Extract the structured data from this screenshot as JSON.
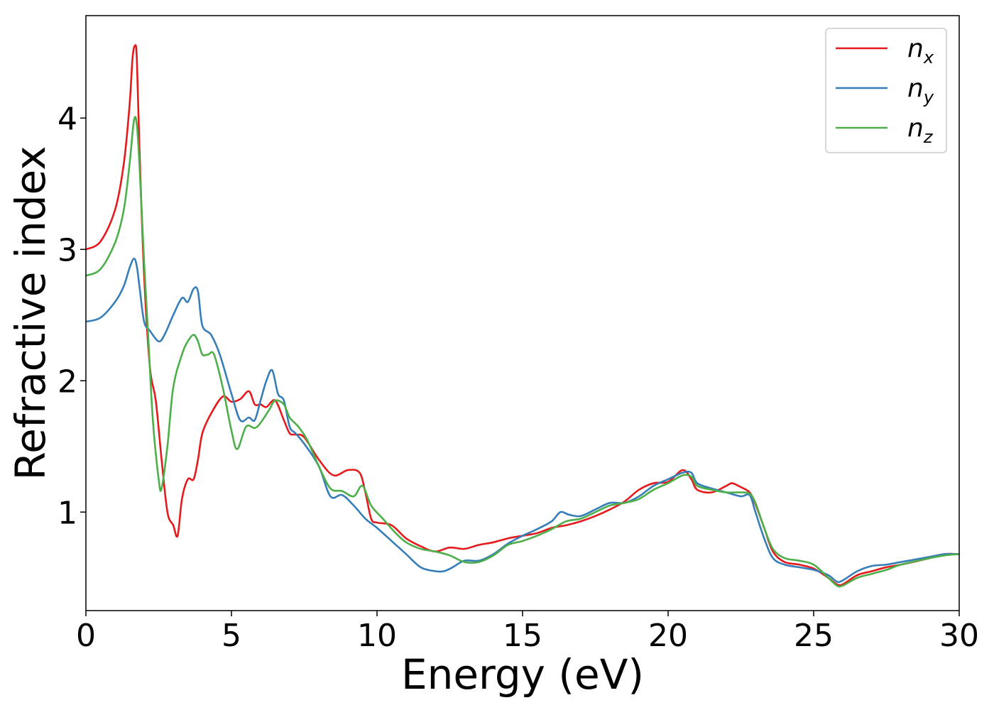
{
  "chart_data": {
    "type": "line",
    "xlabel": "Energy (eV)",
    "ylabel": "Refractive index",
    "xlim": [
      0,
      30
    ],
    "ylim": [
      0.25,
      4.78
    ],
    "xticks": [
      0,
      5,
      10,
      15,
      20,
      25,
      30
    ],
    "xtick_labels": [
      "0",
      "5",
      "10",
      "15",
      "20",
      "25",
      "30"
    ],
    "yticks": [
      1,
      2,
      3,
      4
    ],
    "ytick_labels": [
      "1",
      "2",
      "3",
      "4"
    ],
    "grid": false,
    "legend_position": "top-right",
    "series": [
      {
        "name": "n_x",
        "name_base": "n",
        "name_sub": "x",
        "color": "#e41a1c",
        "x": [
          0,
          0.5,
          1,
          1.3,
          1.5,
          1.6,
          1.68,
          1.75,
          1.85,
          2.0,
          2.2,
          2.4,
          2.6,
          2.8,
          3.0,
          3.15,
          3.3,
          3.5,
          3.7,
          3.85,
          4.0,
          4.3,
          4.7,
          5.0,
          5.3,
          5.6,
          5.8,
          6.0,
          6.2,
          6.5,
          6.8,
          7.0,
          7.2,
          7.5,
          8.0,
          8.5,
          9.0,
          9.4,
          9.6,
          9.8,
          10.0,
          10.5,
          11.0,
          11.5,
          12.0,
          12.5,
          13.0,
          13.5,
          14.0,
          14.5,
          15.0,
          15.5,
          16.0,
          16.5,
          17.0,
          17.5,
          18.0,
          18.5,
          19.0,
          19.5,
          20.0,
          20.5,
          20.8,
          21.0,
          21.5,
          22.0,
          22.2,
          22.5,
          22.8,
          23.0,
          23.3,
          23.6,
          24.0,
          24.5,
          25.0,
          25.5,
          25.8,
          26.0,
          26.5,
          27.0,
          27.5,
          28.0,
          29.0,
          29.5,
          30.0
        ],
        "y": [
          3.0,
          3.06,
          3.3,
          3.65,
          4.1,
          4.45,
          4.55,
          4.45,
          3.7,
          2.8,
          2.1,
          1.85,
          1.4,
          1.0,
          0.9,
          0.82,
          1.1,
          1.25,
          1.25,
          1.4,
          1.6,
          1.75,
          1.88,
          1.84,
          1.86,
          1.92,
          1.82,
          1.82,
          1.8,
          1.85,
          1.7,
          1.6,
          1.59,
          1.57,
          1.4,
          1.28,
          1.32,
          1.3,
          1.15,
          0.95,
          0.92,
          0.9,
          0.8,
          0.74,
          0.7,
          0.73,
          0.72,
          0.75,
          0.77,
          0.8,
          0.82,
          0.84,
          0.88,
          0.9,
          0.93,
          0.97,
          1.02,
          1.08,
          1.17,
          1.22,
          1.23,
          1.32,
          1.25,
          1.17,
          1.15,
          1.2,
          1.22,
          1.19,
          1.15,
          1.06,
          0.88,
          0.7,
          0.62,
          0.6,
          0.57,
          0.5,
          0.45,
          0.45,
          0.52,
          0.55,
          0.58,
          0.6,
          0.65,
          0.68,
          0.68
        ]
      },
      {
        "name": "n_y",
        "name_base": "n",
        "name_sub": "y",
        "color": "#377eb8",
        "x": [
          0,
          0.5,
          1,
          1.3,
          1.5,
          1.65,
          1.75,
          1.85,
          2.0,
          2.2,
          2.5,
          2.7,
          3.0,
          3.3,
          3.5,
          3.7,
          3.85,
          4.0,
          4.3,
          4.6,
          5.0,
          5.3,
          5.6,
          5.8,
          6.0,
          6.2,
          6.4,
          6.6,
          6.8,
          7.0,
          7.2,
          7.5,
          8.0,
          8.4,
          8.8,
          9.2,
          9.6,
          10.0,
          10.5,
          11.0,
          11.5,
          12.0,
          12.3,
          12.6,
          13.0,
          13.5,
          14.0,
          14.5,
          15.0,
          15.5,
          16.0,
          16.3,
          16.6,
          17.0,
          17.5,
          18.0,
          18.5,
          19.0,
          19.5,
          20.0,
          20.5,
          20.8,
          21.0,
          21.5,
          22.0,
          22.5,
          22.8,
          23.0,
          23.3,
          23.6,
          24.0,
          24.5,
          25.0,
          25.5,
          25.8,
          26.0,
          26.5,
          27.0,
          27.5,
          28.0,
          29.0,
          29.5,
          30.0
        ],
        "y": [
          2.45,
          2.48,
          2.6,
          2.72,
          2.86,
          2.93,
          2.87,
          2.7,
          2.45,
          2.38,
          2.3,
          2.35,
          2.5,
          2.63,
          2.6,
          2.7,
          2.68,
          2.42,
          2.35,
          2.2,
          1.9,
          1.7,
          1.72,
          1.7,
          1.85,
          2.0,
          2.08,
          1.9,
          1.85,
          1.65,
          1.6,
          1.52,
          1.35,
          1.12,
          1.13,
          1.05,
          0.95,
          0.88,
          0.78,
          0.68,
          0.58,
          0.55,
          0.55,
          0.58,
          0.63,
          0.63,
          0.68,
          0.76,
          0.82,
          0.87,
          0.93,
          1.0,
          0.98,
          0.97,
          1.02,
          1.07,
          1.07,
          1.12,
          1.2,
          1.25,
          1.3,
          1.3,
          1.22,
          1.18,
          1.15,
          1.12,
          1.13,
          1.0,
          0.8,
          0.65,
          0.6,
          0.58,
          0.56,
          0.52,
          0.47,
          0.48,
          0.55,
          0.59,
          0.6,
          0.62,
          0.66,
          0.68,
          0.68
        ]
      },
      {
        "name": "n_z",
        "name_base": "n",
        "name_sub": "z",
        "color": "#4daf4a",
        "x": [
          0,
          0.5,
          1,
          1.3,
          1.5,
          1.65,
          1.75,
          1.85,
          2.0,
          2.15,
          2.3,
          2.5,
          2.6,
          2.8,
          3.0,
          3.3,
          3.5,
          3.7,
          3.85,
          4.0,
          4.2,
          4.4,
          4.7,
          5.0,
          5.2,
          5.5,
          5.8,
          6.0,
          6.3,
          6.5,
          6.8,
          7.0,
          7.3,
          7.6,
          8.0,
          8.4,
          8.8,
          9.2,
          9.5,
          9.8,
          10.2,
          10.6,
          11.0,
          11.5,
          12.0,
          12.5,
          13.0,
          13.5,
          14.0,
          14.5,
          15.0,
          15.5,
          16.0,
          16.5,
          17.0,
          17.5,
          18.0,
          18.5,
          19.0,
          19.5,
          20.0,
          20.5,
          20.8,
          21.0,
          21.5,
          22.0,
          22.5,
          22.8,
          23.0,
          23.3,
          23.6,
          24.0,
          24.5,
          25.0,
          25.5,
          25.8,
          26.0,
          26.5,
          27.0,
          27.5,
          28.0,
          29.0,
          29.5,
          30.0
        ],
        "y": [
          2.8,
          2.85,
          3.05,
          3.3,
          3.65,
          3.98,
          3.95,
          3.6,
          2.9,
          2.3,
          1.7,
          1.25,
          1.18,
          1.5,
          1.95,
          2.2,
          2.3,
          2.35,
          2.3,
          2.2,
          2.2,
          2.2,
          1.95,
          1.62,
          1.48,
          1.65,
          1.64,
          1.68,
          1.78,
          1.85,
          1.82,
          1.72,
          1.65,
          1.55,
          1.35,
          1.18,
          1.16,
          1.12,
          1.2,
          1.05,
          0.95,
          0.85,
          0.77,
          0.72,
          0.7,
          0.67,
          0.62,
          0.62,
          0.67,
          0.75,
          0.78,
          0.82,
          0.87,
          0.93,
          0.95,
          1.0,
          1.05,
          1.07,
          1.1,
          1.17,
          1.22,
          1.28,
          1.27,
          1.2,
          1.17,
          1.15,
          1.15,
          1.14,
          1.07,
          0.88,
          0.72,
          0.65,
          0.63,
          0.6,
          0.5,
          0.44,
          0.44,
          0.5,
          0.53,
          0.56,
          0.6,
          0.65,
          0.67,
          0.68
        ]
      }
    ]
  }
}
